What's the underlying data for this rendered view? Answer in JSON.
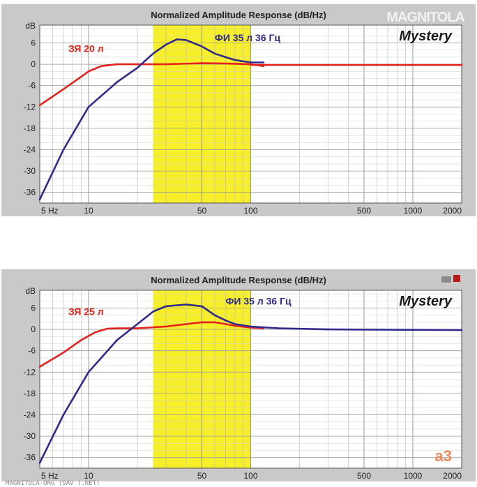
{
  "watermark_top": "MAGNITOLA",
  "watermark_bottom": "MAGNITOLA-ORG (SAV (.NET)",
  "charts": [
    {
      "title": "Normalized Amplitude Response (dB/Hz)",
      "ylabel": "dB",
      "brand": "Mystery",
      "sealed_label": "ЗЯ 20 л",
      "vented_label": "ФИ 35 л 36 Гц",
      "logo": "",
      "xticks": [
        "5 Hz",
        "10",
        "50",
        "100",
        "500",
        "1000",
        "2000"
      ],
      "yticks": [
        "6",
        "0",
        "-6",
        "-12",
        "-18",
        "-24",
        "-30",
        "-36"
      ]
    },
    {
      "title": "Normalized Amplitude Response (dB/Hz)",
      "ylabel": "dB",
      "brand": "Mystery",
      "sealed_label": "ЗЯ 25 л",
      "vented_label": "ФИ 35 л 36 Гц",
      "logo": "a3",
      "xticks": [
        "5 Hz",
        "10",
        "50",
        "100",
        "500",
        "1000",
        "2000"
      ],
      "yticks": [
        "6",
        "0",
        "-6",
        "-12",
        "-18",
        "-24",
        "-30",
        "-36"
      ]
    }
  ],
  "chart_data": [
    {
      "type": "line",
      "title": "Normalized Amplitude Response (dB/Hz)",
      "xscale": "log",
      "xlim": [
        5,
        2000
      ],
      "ylim": [
        -39,
        11
      ],
      "grid": true,
      "highlight_band": {
        "x": [
          25,
          100
        ],
        "color": "#f6ef2a"
      },
      "series": [
        {
          "name": "ЗЯ 20 л",
          "color": "#e4211b",
          "x": [
            5,
            7,
            9,
            10,
            12,
            15,
            20,
            30,
            50,
            70,
            100,
            120
          ],
          "y": [
            -11.5,
            -7,
            -3.5,
            -2,
            -0.5,
            0,
            0,
            0,
            0.3,
            0.2,
            0,
            -0.5
          ]
        },
        {
          "name": "ФИ 35 л 36 Гц",
          "color": "#2f2a8c",
          "x": [
            5,
            7,
            10,
            15,
            20,
            25,
            30,
            35,
            40,
            50,
            60,
            70,
            80,
            100,
            120
          ],
          "y": [
            -38,
            -24,
            -12,
            -5,
            -1,
            3,
            5.5,
            7,
            6.8,
            5,
            3,
            2,
            1.2,
            0.5,
            0.5
          ]
        },
        {
          "name": "",
          "color": "#e4211b",
          "x": [
            100,
            200,
            2000
          ],
          "y": [
            -0.2,
            -0.2,
            -0.2
          ]
        }
      ]
    },
    {
      "type": "line",
      "title": "Normalized Amplitude Response (dB/Hz)",
      "xscale": "log",
      "xlim": [
        5,
        2000
      ],
      "ylim": [
        -39,
        11
      ],
      "grid": true,
      "highlight_band": {
        "x": [
          25,
          100
        ],
        "color": "#f6ef2a"
      },
      "series": [
        {
          "name": "ЗЯ 25 л",
          "color": "#e4211b",
          "x": [
            5,
            7,
            9,
            11,
            13,
            15,
            20,
            30,
            40,
            50,
            60,
            70,
            80,
            100,
            120
          ],
          "y": [
            -10.5,
            -6.5,
            -3,
            -0.8,
            0.2,
            0.3,
            0.3,
            0.8,
            1.5,
            2,
            2,
            1.5,
            1,
            0.5,
            0.3
          ]
        },
        {
          "name": "ФИ 35 л 36 Гц",
          "color": "#2f2a8c",
          "x": [
            5,
            7,
            10,
            15,
            20,
            25,
            30,
            40,
            50,
            60,
            70,
            80,
            100,
            150,
            300
          ],
          "y": [
            -37.5,
            -24,
            -12,
            -3,
            1.5,
            5,
            6.5,
            7,
            6.5,
            4,
            2.5,
            1.5,
            0.8,
            0.3,
            0
          ]
        },
        {
          "name": "",
          "color": "#2f2a8c",
          "x": [
            300,
            2000
          ],
          "y": [
            0,
            -0.2
          ]
        }
      ]
    }
  ]
}
